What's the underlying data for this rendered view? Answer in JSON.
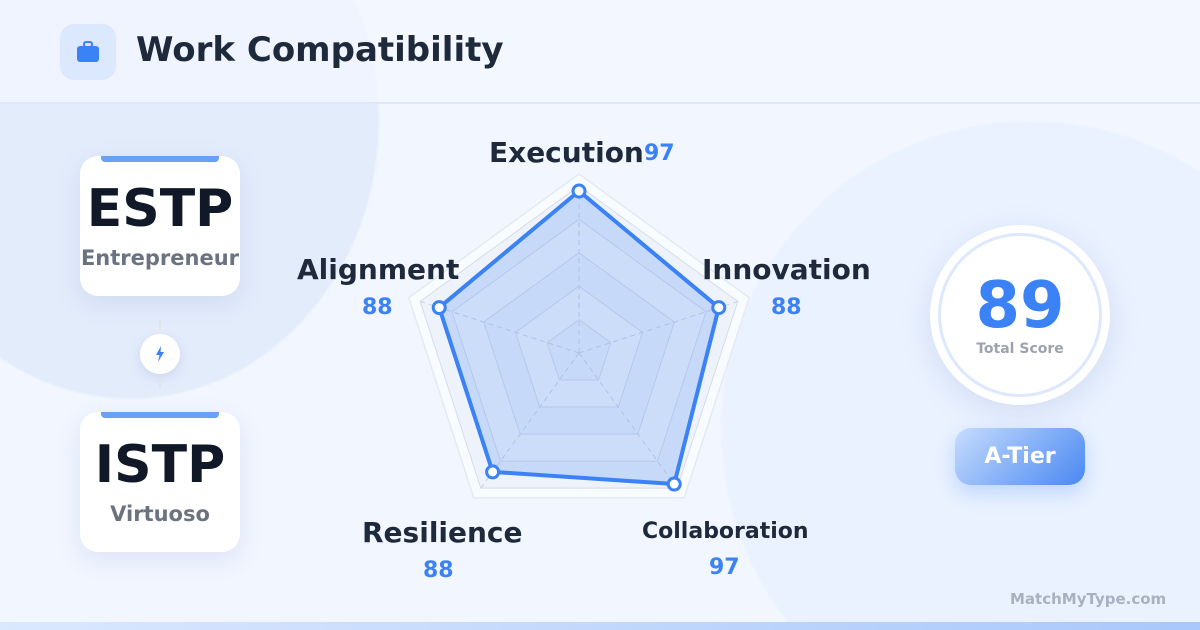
{
  "header": {
    "title": "Work Compatibility",
    "icon": "briefcase-icon"
  },
  "types": [
    {
      "code": "ESTP",
      "nickname": "Entrepreneur"
    },
    {
      "code": "ISTP",
      "nickname": "Virtuoso"
    }
  ],
  "connector_icon": "lightning-icon",
  "score": {
    "value": "89",
    "label": "Total Score"
  },
  "tier": "A-Tier",
  "brand": "MatchMyType.com",
  "colors": {
    "accent": "#3b82f6",
    "title": "#1e293b"
  },
  "chart_data": {
    "type": "radar",
    "categories": [
      "Execution",
      "Innovation",
      "Collaboration",
      "Resilience",
      "Alignment"
    ],
    "values": [
      97,
      88,
      97,
      88,
      88
    ],
    "labels": [
      "97",
      "88",
      "97",
      "88",
      "88"
    ],
    "range": [
      0,
      100
    ],
    "grid_levels": 5
  }
}
